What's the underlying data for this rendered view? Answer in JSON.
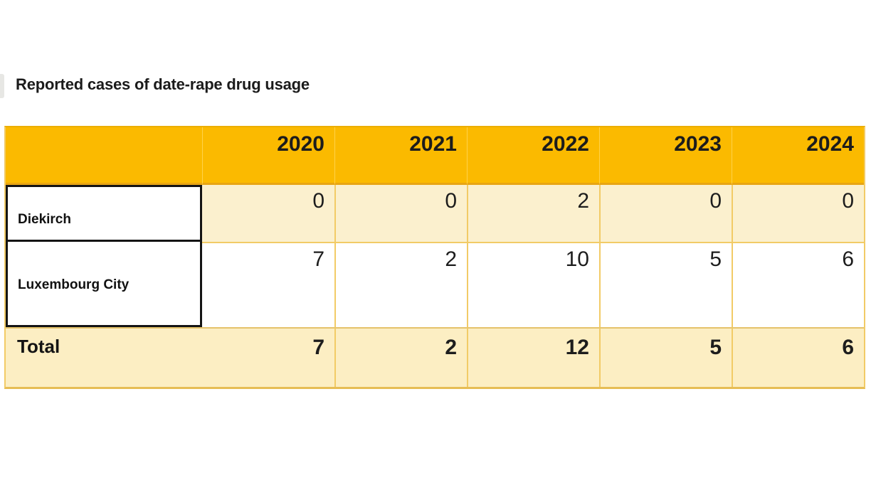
{
  "title": {
    "text": "Reported cases of date-rape drug usage"
  },
  "colors": {
    "header_bg": "#FBBA00",
    "header_edge": "#E8A513",
    "row_cream": "#FBF0CE",
    "total_cream": "#FCEEC3",
    "grid_gold": "#F2CB66",
    "outer_gold": "#E6BD55",
    "selection_border": "#141414",
    "text": "#1B1B1B"
  },
  "table": {
    "columns": [
      "2020",
      "2021",
      "2022",
      "2023",
      "2024"
    ],
    "rows": [
      {
        "label": "Diekirch",
        "values": [
          "0",
          "0",
          "2",
          "0",
          "0"
        ]
      },
      {
        "label": "Luxembourg City",
        "values": [
          "7",
          "2",
          "10",
          "5",
          "6"
        ]
      },
      {
        "label": "Total",
        "values": [
          "7",
          "2",
          "12",
          "5",
          "6"
        ]
      }
    ]
  },
  "chart_data": {
    "type": "table",
    "title": "Reported cases of date-rape drug usage",
    "categories": [
      "2020",
      "2021",
      "2022",
      "2023",
      "2024"
    ],
    "series": [
      {
        "name": "Diekirch",
        "values": [
          0,
          0,
          2,
          0,
          0
        ]
      },
      {
        "name": "Luxembourg City",
        "values": [
          7,
          2,
          10,
          5,
          6
        ]
      },
      {
        "name": "Total",
        "values": [
          7,
          2,
          12,
          5,
          6
        ]
      }
    ],
    "legend_position": "none",
    "grid": true
  }
}
